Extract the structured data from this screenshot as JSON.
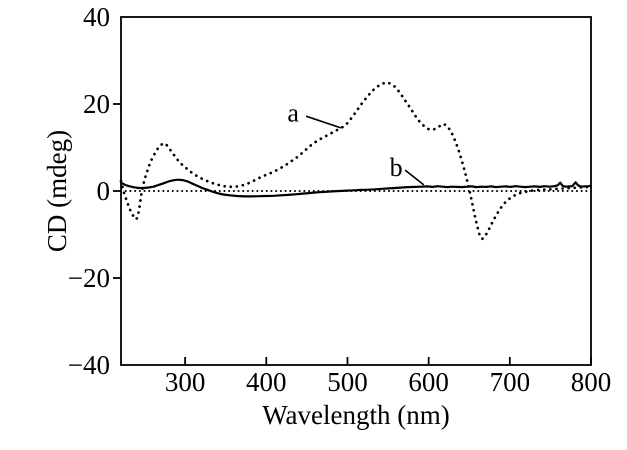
{
  "figure": {
    "background": "#ffffff",
    "ink": "#000000"
  },
  "chart_data": {
    "type": "line",
    "title": "",
    "xlabel": "Wavelength (nm)",
    "ylabel": "CD (mdeg)",
    "xlim": [
      221,
      800
    ],
    "ylim": [
      -40,
      40
    ],
    "x_ticks": [
      300,
      400,
      500,
      600,
      700,
      800
    ],
    "x_tick_labels": [
      "300",
      "400",
      "500",
      "600",
      "700",
      "800"
    ],
    "y_ticks": [
      -40,
      -20,
      0,
      20,
      40
    ],
    "y_tick_labels": [
      "−40",
      "−20",
      "0",
      "20",
      "40"
    ],
    "grid": false,
    "legend_position": "none",
    "baseline": {
      "y": 0,
      "style": "dotted"
    },
    "series": [
      {
        "name": "a",
        "style": "dotted",
        "points": [
          [
            221,
            2.3
          ],
          [
            223,
            0.8
          ],
          [
            225,
            -0.6
          ],
          [
            228,
            -2.2
          ],
          [
            231,
            -3.8
          ],
          [
            234,
            -5.1
          ],
          [
            237,
            -6.0
          ],
          [
            240,
            -6.5
          ],
          [
            242,
            -5.6
          ],
          [
            244,
            -3.4
          ],
          [
            246,
            -0.8
          ],
          [
            248,
            1.0
          ],
          [
            250,
            2.6
          ],
          [
            253,
            4.4
          ],
          [
            256,
            6.0
          ],
          [
            259,
            7.3
          ],
          [
            262,
            8.4
          ],
          [
            265,
            9.4
          ],
          [
            268,
            10.2
          ],
          [
            271,
            10.7
          ],
          [
            274,
            11.0
          ],
          [
            277,
            10.6
          ],
          [
            280,
            9.9
          ],
          [
            283,
            9.1
          ],
          [
            287,
            8.1
          ],
          [
            291,
            7.1
          ],
          [
            296,
            6.1
          ],
          [
            301,
            5.3
          ],
          [
            307,
            4.4
          ],
          [
            313,
            3.6
          ],
          [
            320,
            2.9
          ],
          [
            327,
            2.3
          ],
          [
            334,
            1.8
          ],
          [
            341,
            1.4
          ],
          [
            348,
            1.1
          ],
          [
            355,
            1.0
          ],
          [
            362,
            1.0
          ],
          [
            369,
            1.2
          ],
          [
            376,
            1.6
          ],
          [
            383,
            2.2
          ],
          [
            390,
            2.9
          ],
          [
            397,
            3.5
          ],
          [
            404,
            4.0
          ],
          [
            411,
            4.6
          ],
          [
            418,
            5.3
          ],
          [
            425,
            6.1
          ],
          [
            432,
            7.0
          ],
          [
            439,
            7.9
          ],
          [
            446,
            9.0
          ],
          [
            453,
            10.2
          ],
          [
            460,
            11.2
          ],
          [
            467,
            12.0
          ],
          [
            474,
            12.7
          ],
          [
            481,
            13.4
          ],
          [
            488,
            14.1
          ],
          [
            494,
            14.7
          ],
          [
            500,
            15.6
          ],
          [
            506,
            17.0
          ],
          [
            512,
            18.6
          ],
          [
            518,
            20.2
          ],
          [
            524,
            21.6
          ],
          [
            530,
            22.9
          ],
          [
            536,
            23.9
          ],
          [
            542,
            24.6
          ],
          [
            548,
            25.0
          ],
          [
            553,
            24.7
          ],
          [
            559,
            23.9
          ],
          [
            565,
            22.5
          ],
          [
            571,
            20.8
          ],
          [
            577,
            19.2
          ],
          [
            583,
            17.4
          ],
          [
            589,
            15.9
          ],
          [
            595,
            14.8
          ],
          [
            601,
            14.1
          ],
          [
            607,
            14.2
          ],
          [
            612,
            14.7
          ],
          [
            617,
            15.4
          ],
          [
            621,
            15.2
          ],
          [
            625,
            14.4
          ],
          [
            629,
            13.1
          ],
          [
            633,
            11.4
          ],
          [
            637,
            9.3
          ],
          [
            641,
            6.9
          ],
          [
            645,
            4.2
          ],
          [
            649,
            1.2
          ],
          [
            653,
            -2.2
          ],
          [
            657,
            -5.8
          ],
          [
            660,
            -8.2
          ],
          [
            663,
            -10.3
          ],
          [
            666,
            -11.0
          ],
          [
            669,
            -10.5
          ],
          [
            673,
            -9.3
          ],
          [
            677,
            -7.7
          ],
          [
            682,
            -6.0
          ],
          [
            687,
            -4.4
          ],
          [
            692,
            -3.1
          ],
          [
            697,
            -2.1
          ],
          [
            703,
            -1.3
          ],
          [
            709,
            -0.7
          ],
          [
            716,
            -0.3
          ],
          [
            724,
            0.0
          ],
          [
            732,
            0.2
          ],
          [
            741,
            0.3
          ],
          [
            750,
            0.4
          ],
          [
            759,
            0.5
          ],
          [
            768,
            0.6
          ],
          [
            777,
            0.7
          ],
          [
            786,
            0.8
          ],
          [
            793,
            0.9
          ],
          [
            800,
            1.0
          ]
        ]
      },
      {
        "name": "b",
        "style": "solid",
        "points": [
          [
            221,
            1.9
          ],
          [
            226,
            1.4
          ],
          [
            231,
            1.1
          ],
          [
            237,
            0.85
          ],
          [
            243,
            0.7
          ],
          [
            249,
            0.7
          ],
          [
            255,
            0.8
          ],
          [
            261,
            1.0
          ],
          [
            267,
            1.35
          ],
          [
            273,
            1.75
          ],
          [
            279,
            2.15
          ],
          [
            285,
            2.45
          ],
          [
            291,
            2.6
          ],
          [
            297,
            2.5
          ],
          [
            303,
            2.2
          ],
          [
            309,
            1.7
          ],
          [
            315,
            1.2
          ],
          [
            321,
            0.7
          ],
          [
            327,
            0.3
          ],
          [
            333,
            -0.1
          ],
          [
            340,
            -0.5
          ],
          [
            347,
            -0.8
          ],
          [
            355,
            -1.0
          ],
          [
            364,
            -1.15
          ],
          [
            373,
            -1.25
          ],
          [
            382,
            -1.25
          ],
          [
            391,
            -1.2
          ],
          [
            400,
            -1.15
          ],
          [
            409,
            -1.1
          ],
          [
            418,
            -1.0
          ],
          [
            427,
            -0.9
          ],
          [
            436,
            -0.75
          ],
          [
            445,
            -0.6
          ],
          [
            454,
            -0.45
          ],
          [
            463,
            -0.3
          ],
          [
            472,
            -0.2
          ],
          [
            481,
            -0.1
          ],
          [
            490,
            0.0
          ],
          [
            499,
            0.1
          ],
          [
            508,
            0.15
          ],
          [
            517,
            0.25
          ],
          [
            526,
            0.3
          ],
          [
            535,
            0.4
          ],
          [
            543,
            0.5
          ],
          [
            551,
            0.6
          ],
          [
            559,
            0.7
          ],
          [
            567,
            0.8
          ],
          [
            575,
            0.9
          ],
          [
            583,
            0.95
          ],
          [
            591,
            1.0
          ],
          [
            598,
            1.05
          ],
          [
            605,
            0.95
          ],
          [
            611,
            1.1
          ],
          [
            617,
            1.0
          ],
          [
            623,
            0.9
          ],
          [
            629,
            1.0
          ],
          [
            635,
            0.95
          ],
          [
            641,
            0.9
          ],
          [
            647,
            1.0
          ],
          [
            653,
            1.05
          ],
          [
            659,
            0.9
          ],
          [
            665,
            1.0
          ],
          [
            671,
            0.95
          ],
          [
            677,
            1.05
          ],
          [
            683,
            0.9
          ],
          [
            689,
            1.0
          ],
          [
            695,
            1.05
          ],
          [
            701,
            0.95
          ],
          [
            707,
            1.1
          ],
          [
            713,
            1.0
          ],
          [
            719,
            0.9
          ],
          [
            725,
            1.0
          ],
          [
            731,
            1.05
          ],
          [
            737,
            0.95
          ],
          [
            743,
            1.1
          ],
          [
            749,
            1.0
          ],
          [
            755,
            1.1
          ],
          [
            759,
            1.3
          ],
          [
            762,
            1.9
          ],
          [
            765,
            1.2
          ],
          [
            769,
            1.0
          ],
          [
            773,
            1.05
          ],
          [
            777,
            1.1
          ],
          [
            781,
            2.0
          ],
          [
            784,
            1.3
          ],
          [
            788,
            1.0
          ],
          [
            792,
            1.05
          ],
          [
            796,
            1.1
          ],
          [
            800,
            1.2
          ]
        ]
      }
    ],
    "annotations": [
      {
        "text": "a",
        "text_at": [
          433,
          18.0
        ],
        "line_from": [
          449,
          17.2
        ],
        "line_to": [
          492,
          14.5
        ]
      },
      {
        "text": "b",
        "text_at": [
          560,
          5.5
        ],
        "line_from": [
          571,
          4.8
        ],
        "line_to": [
          594,
          1.4
        ]
      }
    ]
  }
}
